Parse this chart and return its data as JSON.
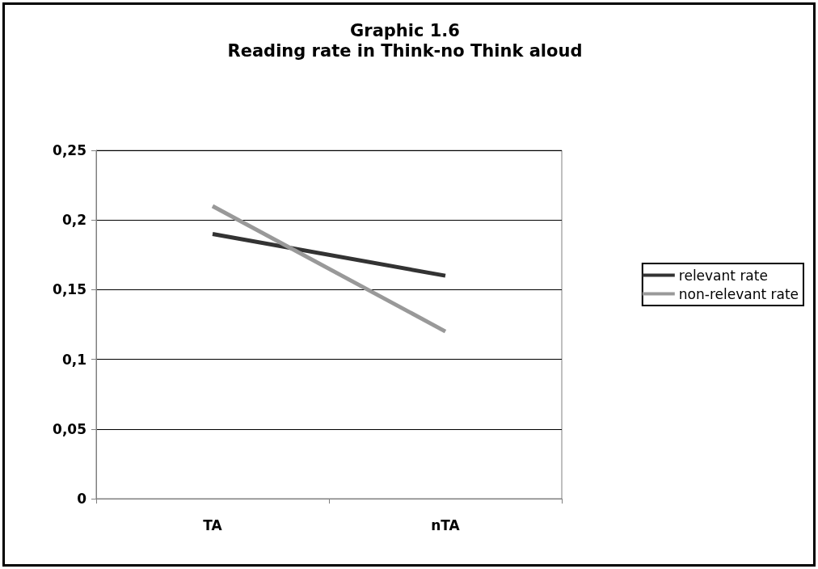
{
  "chart_data": {
    "type": "line",
    "title": "Graphic 1.6",
    "subtitle": "Reading rate in Think-no Think aloud",
    "categories": [
      "TA",
      "nTA"
    ],
    "series": [
      {
        "name": "relevant rate",
        "color": "#333333",
        "values": [
          0.19,
          0.16
        ]
      },
      {
        "name": "non-relevant rate",
        "color": "#999999",
        "values": [
          0.21,
          0.12
        ]
      }
    ],
    "ylim": [
      0,
      0.25
    ],
    "yticks": [
      {
        "value": 0,
        "label": "0"
      },
      {
        "value": 0.05,
        "label": "0,05"
      },
      {
        "value": 0.1,
        "label": "0,1"
      },
      {
        "value": 0.15,
        "label": "0,15"
      },
      {
        "value": 0.2,
        "label": "0,2"
      },
      {
        "value": 0.25,
        "label": "0,25"
      }
    ],
    "grid": "y",
    "legend": "right",
    "marker": "none",
    "line_style": "solid"
  }
}
